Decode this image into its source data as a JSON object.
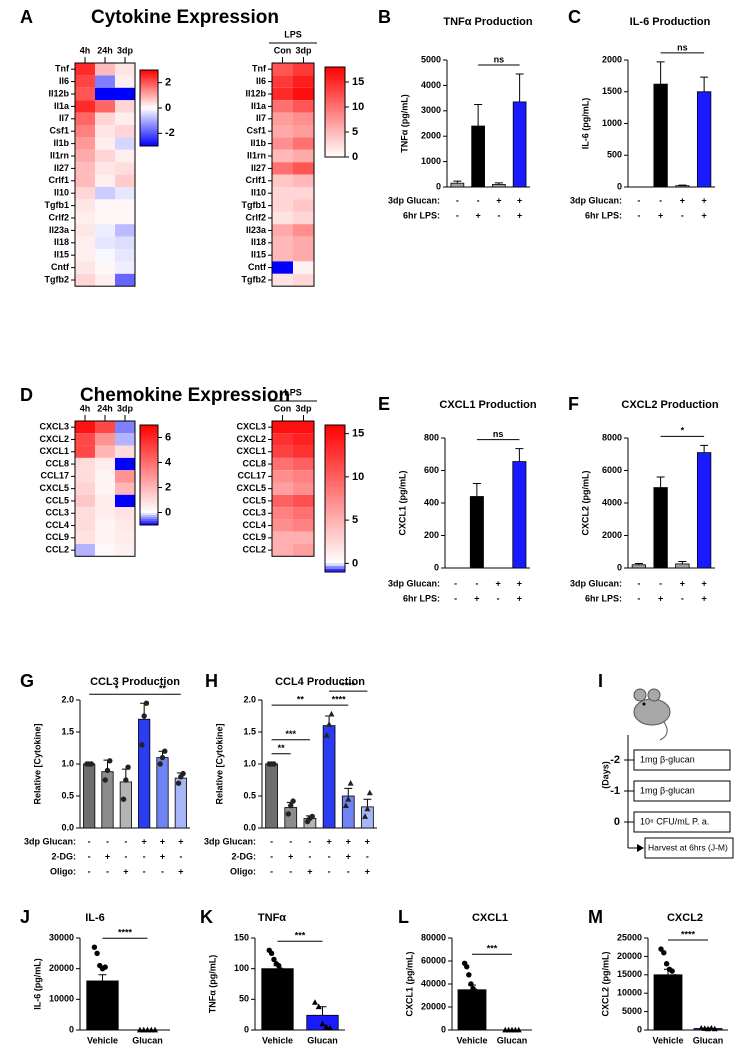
{
  "chart_data": [
    {
      "type": "heatmap",
      "panel": "A",
      "title": "Cytokine Expression",
      "columns": [
        "4h",
        "24h",
        "3dp"
      ],
      "rows": [
        "Tnf",
        "Il6",
        "Il12b",
        "Il1a",
        "Il7",
        "Csf1",
        "Il1b",
        "Il1rn",
        "Il27",
        "Crlf1",
        "Il10",
        "Tgfb1",
        "Crlf2",
        "Il23a",
        "Il18",
        "Il15",
        "Cntf",
        "Tgfb2"
      ],
      "values": [
        [
          2.5,
          0.8,
          0.3
        ],
        [
          2.2,
          -1.5,
          0.2
        ],
        [
          2.0,
          -3,
          -3
        ],
        [
          2.5,
          1.8,
          0.5
        ],
        [
          1.8,
          0.5,
          0.2
        ],
        [
          1.5,
          0.3,
          0.5
        ],
        [
          1.2,
          0.2,
          -0.5
        ],
        [
          1.0,
          0.5,
          0.2
        ],
        [
          0.8,
          0.3,
          0.4
        ],
        [
          0.8,
          0.2,
          0.6
        ],
        [
          0.5,
          -0.6,
          -0.3
        ],
        [
          0.3,
          0.1,
          0.1
        ],
        [
          0.2,
          0.1,
          0.1
        ],
        [
          0.3,
          -0.2,
          -0.8
        ],
        [
          0.2,
          -0.3,
          -0.4
        ],
        [
          0.2,
          -0.1,
          -0.3
        ],
        [
          0.3,
          0.1,
          -0.2
        ],
        [
          0.5,
          0.2,
          -1.8
        ]
      ],
      "zlim": [
        -3,
        3
      ],
      "zticks": [
        2,
        0,
        -2
      ],
      "colors": {
        "low": "#0000ff",
        "mid": "#ffffff",
        "high": "#ff0000"
      }
    },
    {
      "type": "heatmap",
      "group_label": "LPS",
      "columns": [
        "Con",
        "3dp"
      ],
      "rows": [
        "Tnf",
        "Il6",
        "Il12b",
        "Il1a",
        "Il7",
        "Csf1",
        "Il1b",
        "Il1rn",
        "Il27",
        "Crlf1",
        "Il10",
        "Tgfb1",
        "Crlf2",
        "Il23a",
        "Il18",
        "Il15",
        "Cntf",
        "Tgfb2"
      ],
      "values": [
        [
          12,
          14
        ],
        [
          14,
          16
        ],
        [
          15,
          17
        ],
        [
          10,
          12
        ],
        [
          7,
          8
        ],
        [
          6,
          7
        ],
        [
          8,
          10
        ],
        [
          5,
          6
        ],
        [
          10,
          12
        ],
        [
          4,
          5
        ],
        [
          3,
          3
        ],
        [
          3,
          4
        ],
        [
          2,
          3
        ],
        [
          6,
          8
        ],
        [
          5,
          6
        ],
        [
          5,
          6
        ],
        [
          -2,
          1
        ],
        [
          2,
          3
        ]
      ],
      "zlim": [
        0,
        18
      ],
      "zticks": [
        15,
        10,
        5,
        0
      ],
      "colors": {
        "low": "#0000ff",
        "mid": "#ffffff",
        "high": "#ff0000"
      }
    },
    {
      "type": "bar",
      "panel": "B",
      "title": "TNFα Production",
      "ylabel": "TNFα (pg/mL)",
      "ylim": [
        0,
        5000
      ],
      "yticks": [
        0,
        1000,
        2000,
        3000,
        4000,
        5000
      ],
      "values": [
        150,
        2400,
        100,
        3350
      ],
      "errors": [
        80,
        850,
        60,
        1100
      ],
      "colors": [
        "#a0a0a0",
        "#000000",
        "#a0a0a0",
        "#1a1aff"
      ],
      "conditions": [
        {
          "label": "3dp Glucan:",
          "values": [
            "-",
            "-",
            "+",
            "+"
          ]
        },
        {
          "label": "6hr LPS:",
          "values": [
            "-",
            "+",
            "-",
            "+"
          ]
        }
      ],
      "significance": [
        {
          "from": 1,
          "to": 3,
          "label": "ns"
        }
      ]
    },
    {
      "type": "bar",
      "panel": "C",
      "title": "IL-6 Production",
      "ylabel": "IL-6 (pg/mL)",
      "ylim": [
        0,
        2000
      ],
      "yticks": [
        0,
        500,
        1000,
        1500,
        2000
      ],
      "values": [
        0,
        1620,
        20,
        1500
      ],
      "errors": [
        0,
        350,
        10,
        230
      ],
      "colors": [
        "#a0a0a0",
        "#000000",
        "#a0a0a0",
        "#1a1aff"
      ],
      "conditions": [
        {
          "label": "3dp Glucan:",
          "values": [
            "-",
            "-",
            "+",
            "+"
          ]
        },
        {
          "label": "6hr LPS:",
          "values": [
            "-",
            "+",
            "-",
            "+"
          ]
        }
      ],
      "significance": [
        {
          "from": 1,
          "to": 3,
          "label": "ns"
        }
      ]
    },
    {
      "type": "heatmap",
      "panel": "D",
      "title": "Chemokine Expression",
      "columns": [
        "4h",
        "24h",
        "3dp"
      ],
      "rows": [
        "CXCL3",
        "CXCL2",
        "CXCL1",
        "CCL8",
        "CCL17",
        "CXCL5",
        "CCL5",
        "CCL3",
        "CCL4",
        "CCL9",
        "CCL2"
      ],
      "values": [
        [
          6.5,
          5,
          -0.5
        ],
        [
          5,
          3,
          -0.3
        ],
        [
          5,
          2,
          1
        ],
        [
          1,
          0.5,
          -1
        ],
        [
          1,
          0.3,
          3
        ],
        [
          1.2,
          0.3,
          2
        ],
        [
          1.5,
          0.5,
          -1
        ],
        [
          1,
          0.5,
          0.8
        ],
        [
          1,
          0.3,
          0.6
        ],
        [
          0.8,
          0.3,
          0.5
        ],
        [
          -0.3,
          0.2,
          0.4
        ]
      ],
      "zlim": [
        -1,
        7
      ],
      "zticks": [
        6,
        4,
        2,
        0
      ],
      "colors": {
        "low": "#0000ff",
        "mid": "#ffffff",
        "high": "#ff0000"
      }
    },
    {
      "type": "heatmap",
      "group_label": "LPS",
      "columns": [
        "Con",
        "3dp"
      ],
      "rows": [
        "CXCL3",
        "CXCL2",
        "CXCL1",
        "CCL8",
        "CCL17",
        "CXCL5",
        "CCL5",
        "CCL3",
        "CCL4",
        "CCL9",
        "CCL2"
      ],
      "values": [
        [
          15,
          15
        ],
        [
          13,
          14
        ],
        [
          12,
          13
        ],
        [
          9,
          10
        ],
        [
          7,
          8
        ],
        [
          6,
          7
        ],
        [
          10,
          11
        ],
        [
          8,
          9
        ],
        [
          7,
          8
        ],
        [
          5,
          5
        ],
        [
          5,
          6
        ]
      ],
      "zlim": [
        -1,
        16
      ],
      "zticks": [
        15,
        10,
        5,
        0
      ],
      "colors": {
        "low": "#0000ff",
        "mid": "#ffffff",
        "high": "#ff0000"
      }
    },
    {
      "type": "bar",
      "panel": "E",
      "title": "CXCL1 Production",
      "ylabel": "CXCL1 (pg/mL)",
      "ylim": [
        0,
        800
      ],
      "yticks": [
        0,
        200,
        400,
        600,
        800
      ],
      "values": [
        0,
        440,
        0,
        655
      ],
      "errors": [
        0,
        80,
        0,
        80
      ],
      "colors": [
        "#a0a0a0",
        "#000000",
        "#a0a0a0",
        "#1a1aff"
      ],
      "conditions": [
        {
          "label": "3dp Glucan:",
          "values": [
            "-",
            "-",
            "+",
            "+"
          ]
        },
        {
          "label": "6hr LPS:",
          "values": [
            "-",
            "+",
            "-",
            "+"
          ]
        }
      ],
      "significance": [
        {
          "from": 1,
          "to": 3,
          "label": "ns"
        }
      ]
    },
    {
      "type": "bar",
      "panel": "F",
      "title": "CXCL2 Production",
      "ylabel": "CXCL2 (pg/mL)",
      "ylim": [
        0,
        8000
      ],
      "yticks": [
        0,
        2000,
        4000,
        6000,
        8000
      ],
      "values": [
        200,
        4950,
        250,
        7100
      ],
      "errors": [
        80,
        650,
        150,
        450
      ],
      "colors": [
        "#a0a0a0",
        "#000000",
        "#a0a0a0",
        "#1a1aff"
      ],
      "conditions": [
        {
          "label": "3dp Glucan:",
          "values": [
            "-",
            "-",
            "+",
            "+"
          ]
        },
        {
          "label": "6hr LPS:",
          "values": [
            "-",
            "+",
            "-",
            "+"
          ]
        }
      ],
      "significance": [
        {
          "from": 1,
          "to": 3,
          "label": "*"
        }
      ]
    },
    {
      "type": "bar",
      "panel": "G",
      "title": "CCL3 Production",
      "ylabel": "Relative [Cytokine]",
      "ylim": [
        0,
        2
      ],
      "yticks": [
        {
          "value": 0,
          "label": "0.0"
        },
        0.5,
        {
          "value": 1,
          "label": "1.0"
        },
        1.5,
        {
          "value": 2,
          "label": "2.0"
        }
      ],
      "values": [
        1.0,
        0.88,
        0.72,
        1.7,
        1.1,
        0.78
      ],
      "errors": [
        0.02,
        0.18,
        0.2,
        0.25,
        0.1,
        0.08
      ],
      "colors": [
        "#6e6e6e",
        "#8c8c8c",
        "#b4b4b4",
        "#2a3cf0",
        "#6f84f3",
        "#a7b6f7"
      ],
      "points": [
        [
          1,
          1,
          1
        ],
        [
          0.75,
          0.9,
          1.05
        ],
        [
          0.45,
          0.75,
          0.95
        ],
        [
          1.3,
          1.75,
          1.95
        ],
        [
          1.0,
          1.1,
          1.2
        ],
        [
          0.7,
          0.8,
          0.85
        ]
      ],
      "point_shapes": [
        "circle",
        "circle",
        "circle",
        "circle",
        "circle",
        "circle"
      ],
      "point_color": "#222222",
      "conditions": [
        {
          "label": "3dp Glucan:",
          "values": [
            "-",
            "-",
            "-",
            "+",
            "+",
            "+"
          ]
        },
        {
          "label": "2-DG:",
          "values": [
            "-",
            "+",
            "-",
            "-",
            "+",
            "-"
          ]
        },
        {
          "label": "Oligo:",
          "values": [
            "-",
            "-",
            "+",
            "-",
            "-",
            "+"
          ]
        }
      ],
      "significance": [
        {
          "from": 0,
          "to": 3,
          "label": "*"
        },
        {
          "from": 3,
          "to": 5,
          "label": "**"
        }
      ]
    },
    {
      "type": "bar",
      "panel": "H",
      "title": "CCL4 Production",
      "ylabel": "Relative [Cytokine]",
      "ylim": [
        0,
        2
      ],
      "yticks": [
        {
          "value": 0,
          "label": "0.0"
        },
        0.5,
        {
          "value": 1,
          "label": "1.0"
        },
        1.5,
        {
          "value": 2,
          "label": "2.0"
        }
      ],
      "values": [
        1.0,
        0.32,
        0.15,
        1.6,
        0.5,
        0.33
      ],
      "errors": [
        0.02,
        0.08,
        0.04,
        0.15,
        0.12,
        0.12
      ],
      "colors": [
        "#6e6e6e",
        "#8c8c8c",
        "#b4b4b4",
        "#2a3cf0",
        "#6f84f3",
        "#a7b6f7"
      ],
      "points": [
        [
          1,
          1,
          1
        ],
        [
          0.22,
          0.35,
          0.42
        ],
        [
          0.1,
          0.15,
          0.18
        ],
        [
          1.45,
          1.62,
          1.78
        ],
        [
          0.35,
          0.45,
          0.7
        ],
        [
          0.18,
          0.3,
          0.55
        ]
      ],
      "point_shapes": [
        "circle",
        "circle",
        "circle",
        "triangle",
        "triangle",
        "triangle"
      ],
      "point_color": "#222222",
      "conditions": [
        {
          "label": "3dp Glucan:",
          "values": [
            "-",
            "-",
            "-",
            "+",
            "+",
            "+"
          ]
        },
        {
          "label": "2-DG:",
          "values": [
            "-",
            "+",
            "-",
            "-",
            "+",
            "-"
          ]
        },
        {
          "label": "Oligo:",
          "values": [
            "-",
            "-",
            "+",
            "-",
            "-",
            "+"
          ]
        }
      ],
      "significance": [
        {
          "from": 0,
          "to": 1,
          "label": "**"
        },
        {
          "from": 0,
          "to": 2,
          "label": "***"
        },
        {
          "from": 0,
          "to": 3,
          "label": "**"
        },
        {
          "from": 3,
          "to": 4,
          "label": "****"
        },
        {
          "from": 3,
          "to": 5,
          "label": "****"
        }
      ]
    },
    {
      "type": "bar",
      "panel": "J",
      "title": "IL-6",
      "ylabel": "IL-6 (pg/mL)",
      "ylim": [
        0,
        30000
      ],
      "yticks": [
        0,
        10000,
        20000,
        30000
      ],
      "categories": [
        "Vehicle",
        "Glucan"
      ],
      "values": [
        16000,
        0
      ],
      "errors": [
        2000,
        0
      ],
      "colors": [
        "#000000",
        "#1a1aff"
      ],
      "points": [
        [
          27000,
          25000,
          21000,
          20000,
          20500,
          14000,
          15000
        ],
        [
          0,
          0,
          0,
          0,
          0
        ]
      ],
      "point_shapes": [
        "circle",
        "triangle"
      ],
      "point_color": "#000000",
      "significance": [
        {
          "from": 0,
          "to": 1,
          "label": "****"
        }
      ]
    },
    {
      "type": "bar",
      "panel": "K",
      "title": "TNFα",
      "ylabel": "TNFα (pg/mL)",
      "ylim": [
        0,
        150
      ],
      "yticks": [
        0,
        50,
        100,
        150
      ],
      "categories": [
        "Vehicle",
        "Glucan"
      ],
      "values": [
        100,
        24
      ],
      "errors": [
        5,
        14
      ],
      "colors": [
        "#000000",
        "#1a1aff"
      ],
      "points": [
        [
          130,
          125,
          115,
          108,
          105,
          98,
          95,
          92
        ],
        [
          45,
          38,
          10,
          5,
          3
        ]
      ],
      "point_shapes": [
        "circle",
        "triangle"
      ],
      "point_color": "#000000",
      "significance": [
        {
          "from": 0,
          "to": 1,
          "label": "***"
        }
      ]
    },
    {
      "type": "bar",
      "panel": "L",
      "title": "CXCL1",
      "ylabel": "CXCL1 (pg/mL)",
      "ylim": [
        0,
        80000
      ],
      "yticks": [
        0,
        20000,
        40000,
        60000,
        80000
      ],
      "categories": [
        "Vehicle",
        "Glucan"
      ],
      "values": [
        35000,
        0
      ],
      "errors": [
        4000,
        0
      ],
      "colors": [
        "#000000",
        "#1a1aff"
      ],
      "points": [
        [
          58000,
          55000,
          48000,
          40000,
          36000,
          34000,
          32000,
          30000
        ],
        [
          0,
          0,
          0,
          0,
          0
        ]
      ],
      "point_shapes": [
        "circle",
        "triangle"
      ],
      "point_color": "#000000",
      "significance": [
        {
          "from": 0,
          "to": 1,
          "label": "***"
        }
      ]
    },
    {
      "type": "bar",
      "panel": "M",
      "title": "CXCL2",
      "ylabel": "CXCL2 (pg/mL)",
      "ylim": [
        0,
        25000
      ],
      "yticks": [
        0,
        5000,
        10000,
        15000,
        20000,
        25000
      ],
      "categories": [
        "Vehicle",
        "Glucan"
      ],
      "values": [
        15000,
        400
      ],
      "errors": [
        1500,
        100
      ],
      "colors": [
        "#000000",
        "#1a1aff"
      ],
      "points": [
        [
          22000,
          21000,
          18000,
          16500,
          16000,
          14500
        ],
        [
          500,
          400,
          300,
          500,
          300
        ]
      ],
      "point_shapes": [
        "circle",
        "triangle"
      ],
      "point_color": "#000000",
      "significance": [
        {
          "from": 0,
          "to": 1,
          "label": "****"
        }
      ]
    }
  ],
  "timeline": {
    "panel": "I",
    "axis_label": "(Days)",
    "steps": [
      {
        "day": "-2",
        "label": "1mg β-glucan"
      },
      {
        "day": "-1",
        "label": "1mg β-glucan"
      },
      {
        "day": "0",
        "label": "10⁸ CFU/mL P. a."
      }
    ],
    "end": "Harvest at 6hrs (J-M)"
  }
}
